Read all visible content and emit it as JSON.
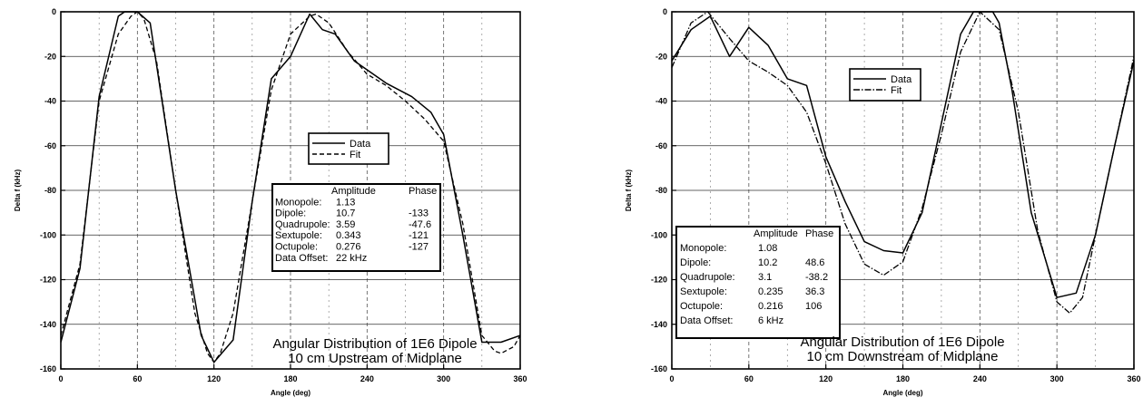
{
  "chart_data": [
    {
      "type": "line",
      "xlabel": "Angle (deg)",
      "ylabel": "Delta f (kHz)",
      "xlim": [
        0,
        360
      ],
      "ylim": [
        -160,
        0
      ],
      "xticks": [
        0,
        60,
        120,
        180,
        240,
        300,
        360
      ],
      "yticks": [
        0,
        -20,
        -40,
        -60,
        -80,
        -100,
        -120,
        -140,
        -160
      ],
      "grid": true,
      "annotation": [
        "Angular Distribution of 1E6 Dipole",
        "10 cm Upstream of Midplane"
      ],
      "legend": {
        "placement": "center-right",
        "entries": [
          "Data",
          "Fit"
        ]
      },
      "table": {
        "headers": [
          "",
          "Amplitude",
          "Phase"
        ],
        "rows": [
          [
            "Monopole:",
            "1.13",
            ""
          ],
          [
            "Dipole:",
            "10.7",
            "-133"
          ],
          [
            "Quadrupole:",
            "3.59",
            "-47.6"
          ],
          [
            "Sextupole:",
            "0.343",
            "-121"
          ],
          [
            "Octupole:",
            "0.276",
            "-127"
          ],
          [
            "Data Offset:",
            "22  kHz",
            ""
          ]
        ]
      },
      "series": [
        {
          "name": "Data",
          "style": "solid",
          "x": [
            0,
            15,
            30,
            45,
            50,
            60,
            70,
            90,
            110,
            120,
            135,
            150,
            165,
            180,
            195,
            205,
            215,
            230,
            255,
            275,
            290,
            300,
            315,
            330,
            345,
            360
          ],
          "y": [
            -148,
            -115,
            -38,
            -2,
            0,
            0,
            -5,
            -80,
            -145,
            -157,
            -147,
            -85,
            -30,
            -20,
            -1,
            -8,
            -10,
            -22,
            -32,
            -38,
            -45,
            -55,
            -100,
            -148,
            -148,
            -145
          ]
        },
        {
          "name": "Fit",
          "style": "dashed",
          "x": [
            0,
            15,
            30,
            45,
            55,
            60,
            65,
            75,
            90,
            105,
            115,
            120,
            125,
            135,
            150,
            165,
            180,
            195,
            200,
            210,
            225,
            240,
            255,
            270,
            285,
            300,
            315,
            330,
            340,
            345,
            355,
            360
          ],
          "y": [
            -145,
            -113,
            -40,
            -10,
            -2,
            0,
            -3,
            -22,
            -80,
            -135,
            -153,
            -157,
            -153,
            -135,
            -85,
            -35,
            -10,
            -2,
            -1,
            -5,
            -18,
            -28,
            -33,
            -40,
            -48,
            -58,
            -95,
            -145,
            -152,
            -153,
            -150,
            -145
          ]
        }
      ]
    },
    {
      "type": "line",
      "xlabel": "Angle (deg)",
      "ylabel": "Delta f (kHz)",
      "xlim": [
        0,
        360
      ],
      "ylim": [
        -160,
        0
      ],
      "xticks": [
        0,
        60,
        120,
        180,
        240,
        300,
        360
      ],
      "yticks": [
        0,
        -20,
        -40,
        -60,
        -80,
        -100,
        -120,
        -140,
        -160
      ],
      "grid": true,
      "annotation": [
        "Angular Distribution of 1E6 Dipole",
        "10 cm Downstream of Midplane"
      ],
      "legend": {
        "placement": "top-center",
        "entries": [
          "Data",
          "Fit"
        ]
      },
      "table": {
        "headers": [
          "",
          "Amplitude",
          "Phase"
        ],
        "rows": [
          [
            "Monopole:",
            "1.08",
            ""
          ],
          [
            "Dipole:",
            "10.2",
            "48.6"
          ],
          [
            "Quadrupole:",
            "3.1",
            "-38.2"
          ],
          [
            "Sextupole:",
            "0.235",
            "36.3"
          ],
          [
            "Octupole:",
            "0.216",
            "106"
          ],
          [
            "Data Offset:",
            "6   kHz",
            ""
          ]
        ]
      },
      "series": [
        {
          "name": "Data",
          "style": "solid",
          "x": [
            0,
            15,
            30,
            45,
            60,
            75,
            90,
            105,
            120,
            135,
            150,
            165,
            180,
            195,
            210,
            225,
            235,
            240,
            250,
            255,
            265,
            280,
            300,
            315,
            330,
            345,
            360
          ],
          "y": [
            -22,
            -8,
            -2,
            -20,
            -7,
            -15,
            -30,
            -33,
            -65,
            -85,
            -103,
            -107,
            -108,
            -90,
            -50,
            -10,
            0,
            0,
            0,
            -5,
            -35,
            -90,
            -128,
            -126,
            -100,
            -60,
            -22
          ]
        },
        {
          "name": "Fit",
          "style": "dashdot",
          "x": [
            0,
            15,
            28,
            45,
            60,
            75,
            90,
            105,
            120,
            135,
            150,
            165,
            180,
            195,
            210,
            225,
            240,
            255,
            270,
            285,
            300,
            310,
            320,
            330,
            345,
            360
          ],
          "y": [
            -25,
            -5,
            0,
            -12,
            -22,
            -27,
            -33,
            -45,
            -68,
            -95,
            -113,
            -118,
            -112,
            -88,
            -55,
            -18,
            0,
            -8,
            -45,
            -98,
            -130,
            -135,
            -128,
            -100,
            -60,
            -20
          ]
        }
      ]
    }
  ]
}
